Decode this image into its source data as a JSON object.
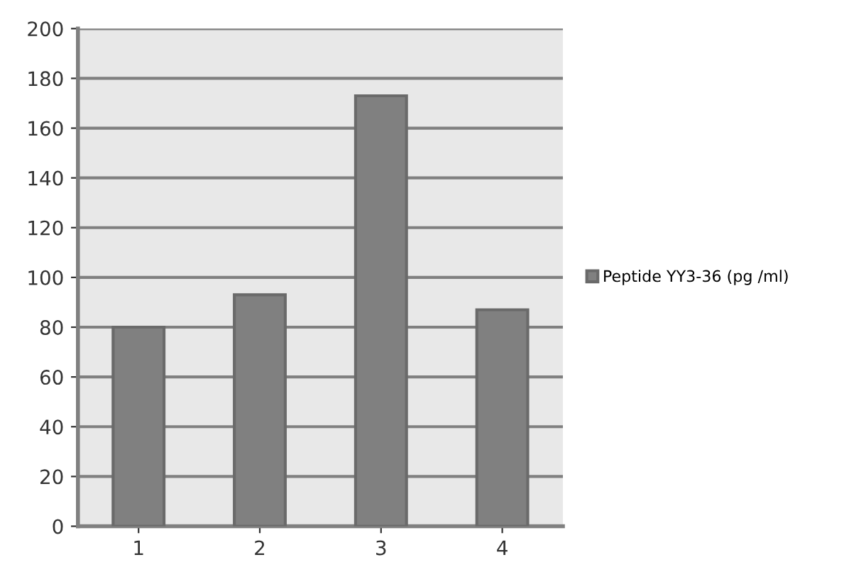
{
  "chart_data": {
    "type": "bar",
    "categories": [
      "1",
      "2",
      "3",
      "4"
    ],
    "series": [
      {
        "name": "Peptide YY3-36 (pg /ml)",
        "color": "#808080",
        "values": [
          80,
          93,
          173,
          87
        ]
      }
    ],
    "ylim": [
      0,
      200
    ],
    "yticks": [
      0,
      20,
      40,
      60,
      80,
      100,
      120,
      140,
      160,
      180,
      200
    ],
    "grid": "y",
    "legend": "right"
  }
}
